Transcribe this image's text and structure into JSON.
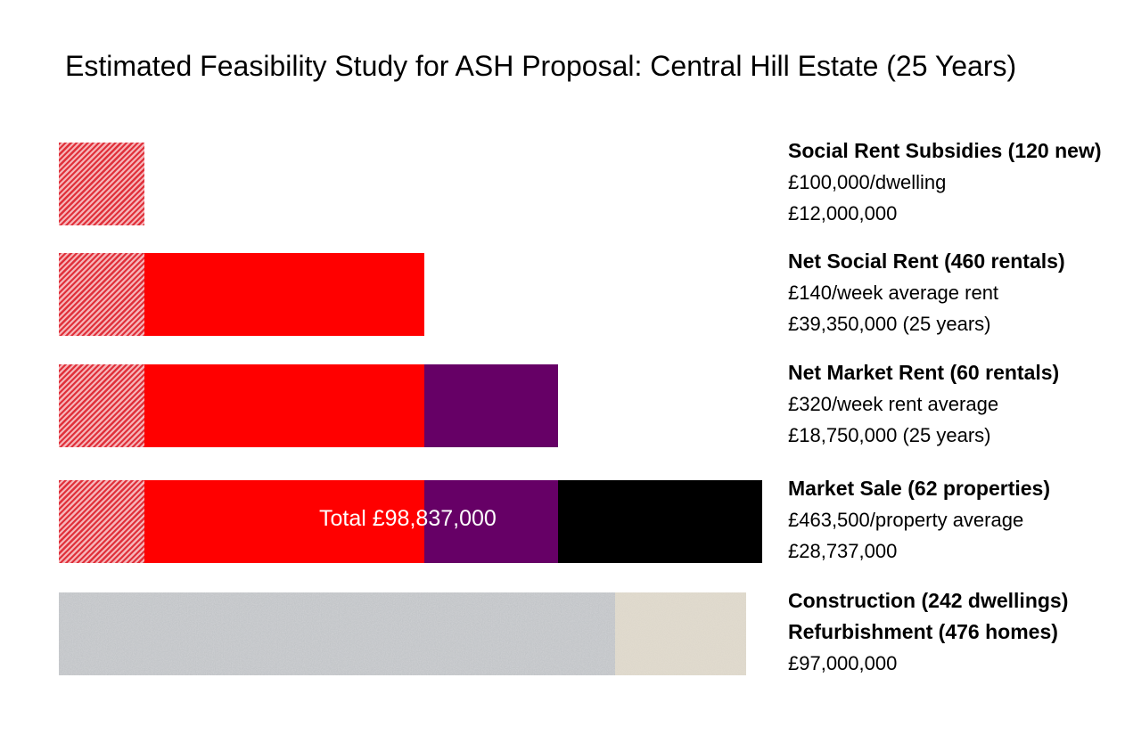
{
  "chart_data": {
    "type": "bar",
    "stacked": true,
    "orientation": "horizontal",
    "title": "Estimated Feasibility Study for ASH Proposal: Central Hill Estate (25 Years)",
    "units": "GBP millions",
    "segments": [
      {
        "name": "Social Rent Subsidies",
        "value": 12.0,
        "color": "#e0303a",
        "pattern": "hatch"
      },
      {
        "name": "Net Social Rent",
        "value": 39.35,
        "color": "#ff0000"
      },
      {
        "name": "Net Market Rent",
        "value": 18.75,
        "color": "#660066"
      },
      {
        "name": "Market Sale",
        "value": 28.737,
        "color": "#000000"
      }
    ],
    "rows": [
      {
        "segments_shown": 1,
        "label": [
          "Social Rent Subsidies (120 new)",
          "£100,000/dwelling",
          "£12,000,000"
        ]
      },
      {
        "segments_shown": 2,
        "label": [
          "Net Social Rent (460 rentals)",
          "£140/week average rent",
          "£39,350,000 (25 years)"
        ]
      },
      {
        "segments_shown": 3,
        "label": [
          "Net Market Rent (60 rentals)",
          "£320/week rent average",
          "£18,750,000 (25 years)"
        ]
      },
      {
        "segments_shown": 4,
        "label": [
          "Market Sale (62 properties)",
          "£463,500/property average",
          "£28,737,000"
        ]
      }
    ],
    "total_label": "Total £98,837,000",
    "cost_bar": {
      "value": 97.0,
      "label": [
        "Construction (242 dwellings)",
        "Refurbishment (476 homes)",
        "£97,000,000"
      ]
    }
  }
}
